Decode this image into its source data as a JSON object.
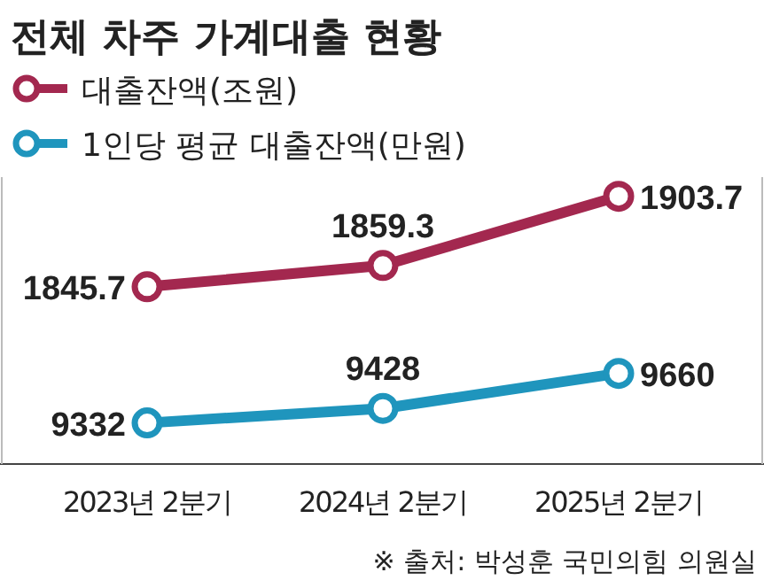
{
  "chart_data": {
    "type": "line",
    "title": "전체 차주 가계대출 현황",
    "categories": [
      "2023년 2분기",
      "2024년 2분기",
      "2025년 2분기"
    ],
    "series": [
      {
        "name": "대출잔액(조원)",
        "color": "#a3284f",
        "values": [
          1845.7,
          1859.3,
          1903.7
        ]
      },
      {
        "name": "1인당 평균 대출잔액(만원)",
        "color": "#1f95bd",
        "values": [
          9332,
          9428,
          9660
        ],
        "axis": "y2"
      }
    ],
    "ylim": [
      1732,
      1916
    ],
    "y2lim": [
      9060,
      10960
    ],
    "tick_labels": "x",
    "data_labels": true,
    "marker": "circle",
    "line_style": "solid",
    "legend": "top left",
    "annotations": [
      "※ 출처: 박성훈 국민의힘 의원실"
    ]
  }
}
